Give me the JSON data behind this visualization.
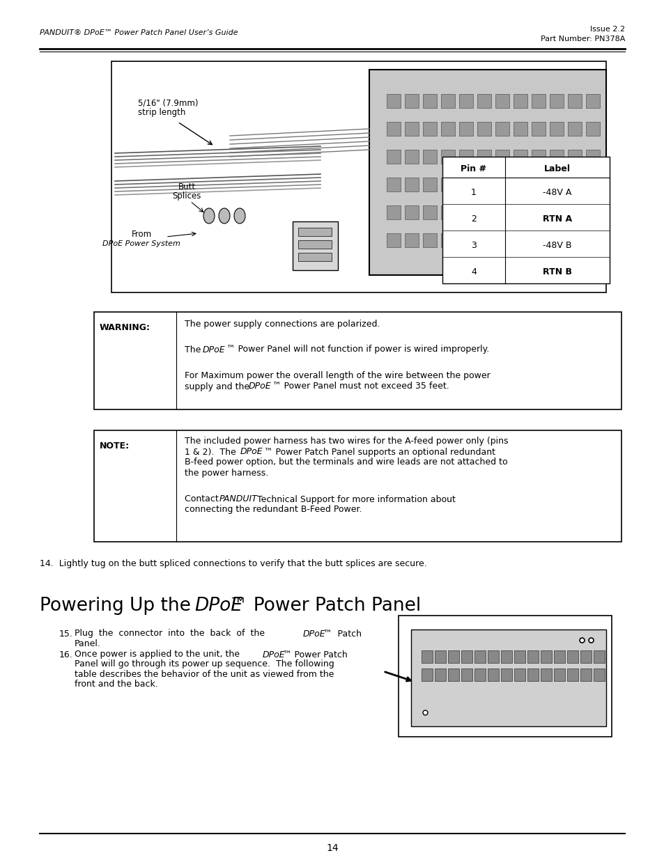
{
  "header_left": "PANDUIT® DPoE™ Power Patch Panel User’s Guide",
  "header_right_line1": "Issue 2.2",
  "header_right_line2": "Part Number: PN378A",
  "warning_label": "WARNING:",
  "warning_line1": "The power supply connections are polarized.",
  "warning_line2_a": "The ",
  "warning_line2_b": "DPoE",
  "warning_line2_c": "™ Power Panel will not function if power is wired improperly.",
  "warning_line3": "For Maximum power the overall length of the wire between the power",
  "warning_line4_a": "supply and the ",
  "warning_line4_b": "DPoE",
  "warning_line4_c": "™ Power Panel must not exceed 35 feet.",
  "note_label": "NOTE:",
  "note_line1": "The included power harness has two wires for the A-feed power only (pins",
  "note_line2_a": "1 & 2).  The ",
  "note_line2_b": "DPoE",
  "note_line2_c": "™ Power Patch Panel supports an optional redundant",
  "note_line3": "B-feed power option, but the terminals and wire leads are not attached to",
  "note_line4": "the power harness.",
  "note_line5_a": "Contact ",
  "note_line5_b": "PANDUIT",
  "note_line5_c": " Technical Support for more information about",
  "note_line6": "connecting the redundant B-Feed Power.",
  "step14": "14.  Lightly tug on the butt spliced connections to verify that the butt splices are secure.",
  "footer_page": "14",
  "bg_color": "#ffffff",
  "text_color": "#000000"
}
